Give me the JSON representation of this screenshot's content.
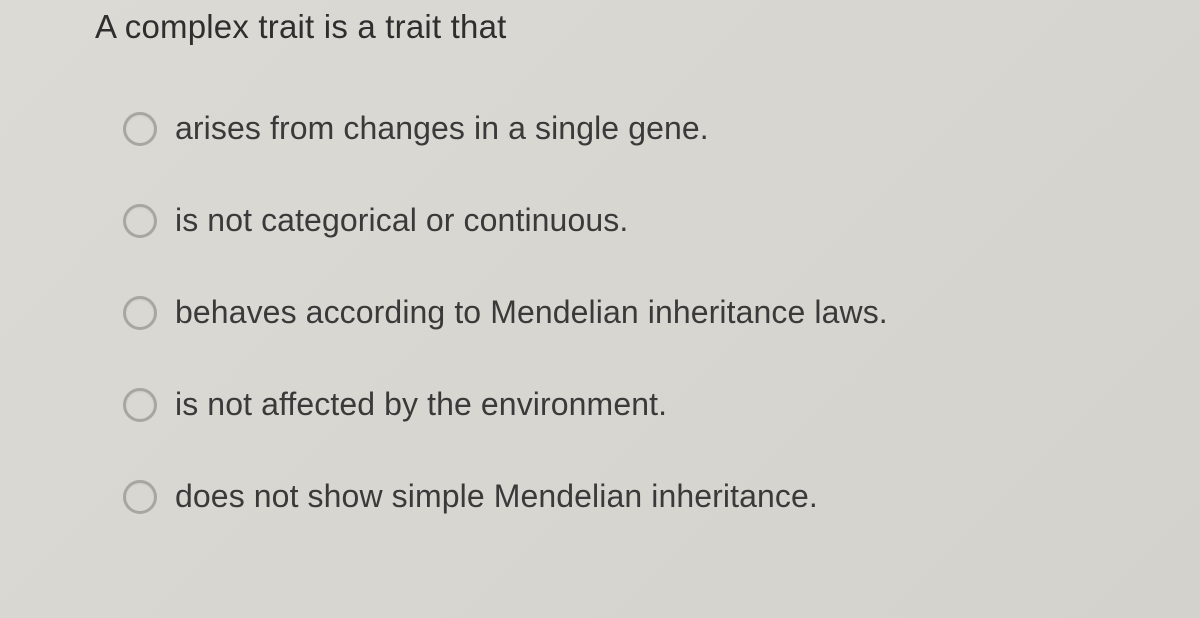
{
  "question": {
    "text": "A complex trait is a trait that",
    "text_color": "#2e2e2e",
    "font_size": 33
  },
  "options": [
    {
      "label": "arises from changes in a single gene.",
      "selected": false
    },
    {
      "label": "is not categorical or continuous.",
      "selected": false
    },
    {
      "label": "behaves according to Mendelian inheritance laws.",
      "selected": false
    },
    {
      "label": "is not affected by the environment.",
      "selected": false
    },
    {
      "label": "does not show simple Mendelian inheritance.",
      "selected": false
    }
  ],
  "styling": {
    "background_gradient_start": "#dcdad5",
    "background_gradient_end": "#d4d2cc",
    "radio_border_color": "#a8a6a0",
    "radio_size": 34,
    "option_font_size": 32,
    "option_text_color": "#3a3a3a",
    "option_gap": 55
  }
}
